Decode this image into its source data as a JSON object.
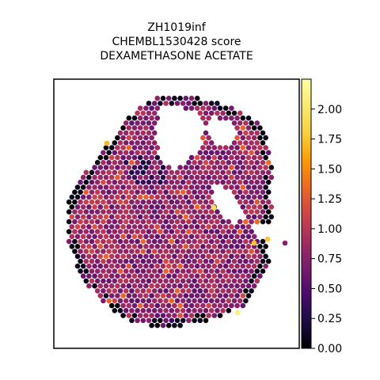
{
  "chart_data": {
    "type": "scatter",
    "subtype": "spatial-hexbin",
    "title": [
      "ZH1019inf",
      "CHEMBL1530428 score",
      "DEXAMETHASONE ACETATE"
    ],
    "xlabel": "",
    "ylabel": "",
    "colorbar": {
      "colormap": "inferno",
      "range": [
        0.0,
        2.25
      ],
      "ticks": [
        0.0,
        0.25,
        0.5,
        0.75,
        1.0,
        1.25,
        1.5,
        1.75,
        2.0
      ],
      "tick_labels": [
        "0.00",
        "0.25",
        "0.50",
        "0.75",
        "1.00",
        "1.25",
        "1.50",
        "1.75",
        "2.00"
      ],
      "position": "right"
    },
    "grid": false,
    "legend": "none",
    "score_summary": {
      "typical": 0.75,
      "high_outliers": [
        1.7,
        1.75,
        1.9,
        2.1
      ],
      "zero_boundary": 0.0
    }
  }
}
